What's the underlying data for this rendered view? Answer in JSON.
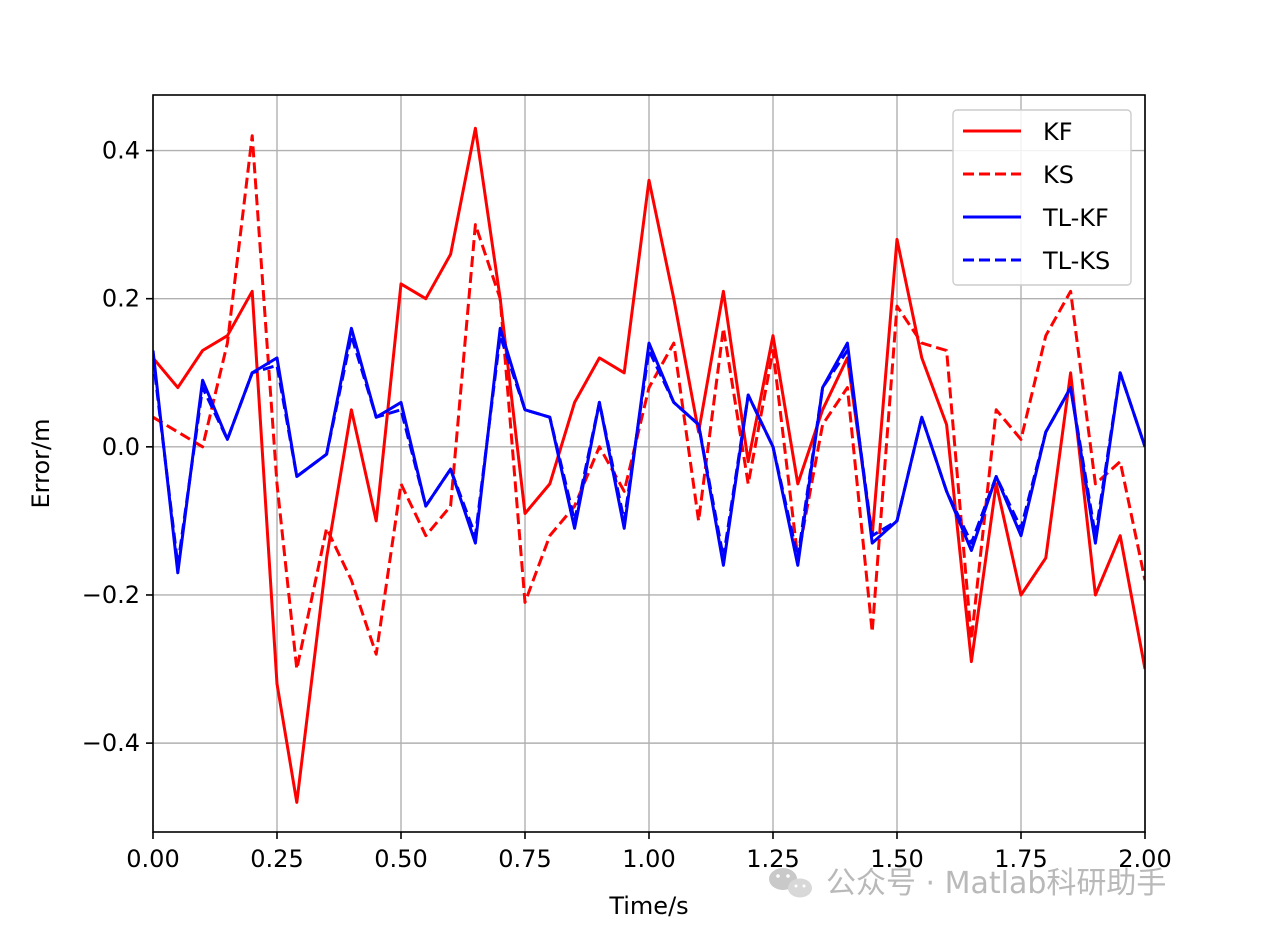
{
  "chart_data": {
    "type": "line",
    "title": "",
    "xlabel": "Time/s",
    "ylabel": "Error/m",
    "xlim": [
      0,
      2
    ],
    "ylim": [
      -0.52,
      0.475
    ],
    "grid": true,
    "legend_position": "top-right",
    "x_ticks": [
      0,
      0.25,
      0.5,
      0.75,
      1,
      1.25,
      1.5,
      1.75,
      2
    ],
    "x_tick_labels": [
      "0.00",
      "0.25",
      "0.50",
      "0.75",
      "1.00",
      "1.25",
      "1.50",
      "1.75",
      "2.00"
    ],
    "y_ticks": [
      0.4,
      0.2,
      0,
      -0.2,
      -0.4
    ],
    "y_tick_labels": [
      "0.4",
      "0.2",
      "0.0",
      "−0.2",
      "−0.4"
    ],
    "x": [
      0.0,
      0.05,
      0.1,
      0.15,
      0.2,
      0.25,
      0.29,
      0.35,
      0.4,
      0.45,
      0.5,
      0.55,
      0.6,
      0.65,
      0.7,
      0.75,
      0.8,
      0.85,
      0.9,
      0.95,
      1.0,
      1.05,
      1.1,
      1.15,
      1.2,
      1.25,
      1.3,
      1.35,
      1.4,
      1.45,
      1.5,
      1.55,
      1.6,
      1.65,
      1.7,
      1.75,
      1.8,
      1.85,
      1.9,
      1.95,
      2.0
    ],
    "series": [
      {
        "name": "KF",
        "color": "#ff0000",
        "dash": "solid",
        "values": [
          0.12,
          0.08,
          0.13,
          0.15,
          0.21,
          -0.32,
          -0.48,
          -0.15,
          0.05,
          -0.1,
          0.22,
          0.2,
          0.26,
          0.43,
          0.2,
          -0.09,
          -0.05,
          0.06,
          0.12,
          0.1,
          0.36,
          0.2,
          0.02,
          0.21,
          -0.02,
          0.15,
          -0.05,
          0.05,
          0.12,
          -0.12,
          0.28,
          0.12,
          0.03,
          -0.29,
          -0.05,
          -0.2,
          -0.15,
          0.1,
          -0.2,
          -0.12,
          -0.3
        ]
      },
      {
        "name": "KS",
        "color": "#ff0000",
        "dash": "dashed",
        "values": [
          0.04,
          0.02,
          0.0,
          0.14,
          0.42,
          -0.05,
          -0.3,
          -0.11,
          -0.18,
          -0.28,
          -0.05,
          -0.12,
          -0.08,
          0.3,
          0.2,
          -0.21,
          -0.12,
          -0.08,
          0.0,
          -0.06,
          0.08,
          0.14,
          -0.1,
          0.16,
          -0.05,
          0.13,
          -0.15,
          0.03,
          0.08,
          -0.25,
          0.19,
          0.14,
          0.13,
          -0.26,
          0.05,
          0.01,
          0.15,
          0.21,
          -0.05,
          -0.02,
          -0.18
        ]
      },
      {
        "name": "TL-KF",
        "color": "#0000ff",
        "dash": "solid",
        "values": [
          0.13,
          -0.17,
          0.09,
          0.01,
          0.1,
          0.12,
          -0.04,
          -0.01,
          0.16,
          0.04,
          0.06,
          -0.08,
          -0.03,
          -0.13,
          0.16,
          0.05,
          0.04,
          -0.11,
          0.06,
          -0.11,
          0.14,
          0.06,
          0.03,
          -0.16,
          0.07,
          0.0,
          -0.16,
          0.08,
          0.14,
          -0.13,
          -0.1,
          0.04,
          -0.06,
          -0.14,
          -0.04,
          -0.12,
          0.02,
          0.08,
          -0.13,
          0.1,
          0.0
        ]
      },
      {
        "name": "TL-KS",
        "color": "#0000ff",
        "dash": "dashed",
        "values": [
          0.12,
          -0.16,
          0.08,
          0.01,
          0.1,
          0.11,
          -0.04,
          -0.01,
          0.15,
          0.04,
          0.05,
          -0.08,
          -0.03,
          -0.12,
          0.15,
          0.05,
          0.04,
          -0.1,
          0.06,
          -0.1,
          0.13,
          0.06,
          0.03,
          -0.15,
          0.07,
          0.0,
          -0.15,
          0.08,
          0.13,
          -0.12,
          -0.1,
          0.04,
          -0.06,
          -0.13,
          -0.04,
          -0.11,
          0.02,
          0.08,
          -0.12,
          0.1,
          0.0
        ]
      }
    ]
  },
  "watermark": {
    "icon": "wechat-icon",
    "text": "公众号 · Matlab科研助手"
  }
}
